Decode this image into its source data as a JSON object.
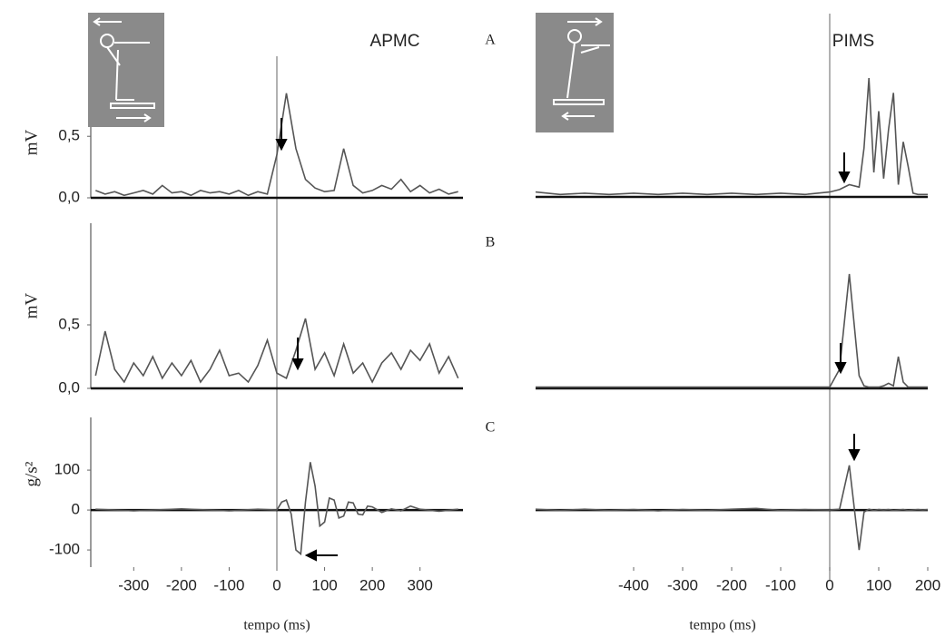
{
  "chart_data": [
    {
      "type": "line",
      "title": "APMC",
      "panel_label": "A",
      "ylabel": "mV",
      "color": "#555555",
      "reference_x": 0,
      "xlim": [
        -390,
        390
      ],
      "ylim": [
        0,
        0.9
      ],
      "yticks": [
        {
          "value": 0,
          "label": "0,0"
        },
        {
          "value": 0.5,
          "label": "0,5"
        }
      ],
      "x": [
        -380,
        -360,
        -340,
        -320,
        -300,
        -280,
        -260,
        -240,
        -220,
        -200,
        -180,
        -160,
        -140,
        -120,
        -100,
        -80,
        -60,
        -40,
        -20,
        0,
        20,
        40,
        60,
        80,
        100,
        120,
        140,
        160,
        180,
        200,
        220,
        240,
        260,
        280,
        300,
        320,
        340,
        360,
        380
      ],
      "values": [
        0.06,
        0.03,
        0.05,
        0.02,
        0.04,
        0.06,
        0.03,
        0.1,
        0.04,
        0.05,
        0.02,
        0.06,
        0.04,
        0.05,
        0.03,
        0.06,
        0.02,
        0.05,
        0.03,
        0.35,
        0.85,
        0.4,
        0.15,
        0.08,
        0.05,
        0.06,
        0.4,
        0.1,
        0.04,
        0.06,
        0.1,
        0.07,
        0.15,
        0.05,
        0.1,
        0.04,
        0.07,
        0.03,
        0.05
      ]
    },
    {
      "type": "line",
      "panel_label": "B",
      "ylabel": "mV",
      "color": "#555555",
      "xlim": [
        -390,
        390
      ],
      "ylim": [
        0,
        1.3
      ],
      "yticks": [
        {
          "value": 0,
          "label": "0,0"
        },
        {
          "value": 0.5,
          "label": "0,5"
        }
      ],
      "x": [
        -380,
        -360,
        -340,
        -320,
        -300,
        -280,
        -260,
        -240,
        -220,
        -200,
        -180,
        -160,
        -140,
        -120,
        -100,
        -80,
        -60,
        -40,
        -20,
        0,
        20,
        40,
        60,
        80,
        100,
        120,
        140,
        160,
        180,
        200,
        220,
        240,
        260,
        280,
        300,
        320,
        340,
        360,
        380
      ],
      "values": [
        0.1,
        0.45,
        0.15,
        0.05,
        0.2,
        0.1,
        0.25,
        0.08,
        0.2,
        0.1,
        0.22,
        0.05,
        0.15,
        0.3,
        0.1,
        0.12,
        0.05,
        0.18,
        0.38,
        0.12,
        0.08,
        0.3,
        0.55,
        0.15,
        0.28,
        0.1,
        0.35,
        0.12,
        0.2,
        0.05,
        0.2,
        0.28,
        0.15,
        0.3,
        0.22,
        0.35,
        0.12,
        0.25,
        0.08
      ]
    },
    {
      "type": "line",
      "panel_label": "C",
      "ylabel": "g/s²",
      "xlabel": "tempo (ms)",
      "color": "#555555",
      "xlim": [
        -390,
        390
      ],
      "ylim": [
        -143,
        232
      ],
      "yticks": [
        -100,
        0,
        100
      ],
      "xticks": [
        -300,
        -200,
        -100,
        0,
        100,
        200,
        300
      ],
      "x": [
        -380,
        -300,
        -200,
        -100,
        -40,
        0,
        10,
        20,
        30,
        40,
        50,
        60,
        70,
        80,
        90,
        100,
        110,
        120,
        130,
        140,
        150,
        160,
        170,
        180,
        190,
        200,
        220,
        240,
        260,
        280,
        300,
        340,
        380
      ],
      "values": [
        2,
        -2,
        3,
        -2,
        2,
        0,
        20,
        25,
        -10,
        -100,
        -110,
        20,
        120,
        60,
        -40,
        -30,
        30,
        25,
        -20,
        -15,
        20,
        18,
        -10,
        -12,
        10,
        8,
        -6,
        3,
        -2,
        10,
        2,
        -3,
        2
      ]
    },
    {
      "type": "line",
      "title": "PIMS",
      "color": "#555555",
      "reference_x": 0,
      "xlim": [
        -600,
        200
      ],
      "ylim": [
        0,
        1
      ],
      "x": [
        -600,
        -550,
        -500,
        -450,
        -400,
        -350,
        -300,
        -250,
        -200,
        -150,
        -100,
        -50,
        0,
        20,
        40,
        60,
        70,
        80,
        90,
        100,
        110,
        120,
        130,
        140,
        150,
        160,
        170,
        180,
        190,
        200
      ],
      "values": [
        0.04,
        0.02,
        0.03,
        0.02,
        0.03,
        0.02,
        0.03,
        0.02,
        0.03,
        0.02,
        0.03,
        0.02,
        0.04,
        0.06,
        0.1,
        0.08,
        0.4,
        0.97,
        0.2,
        0.7,
        0.15,
        0.55,
        0.85,
        0.1,
        0.45,
        0.25,
        0.03,
        0.02,
        0.02,
        0.02
      ]
    },
    {
      "type": "line",
      "color": "#555555",
      "xlim": [
        -600,
        200
      ],
      "ylim": [
        0,
        1.3
      ],
      "x": [
        -600,
        -550,
        -500,
        -450,
        -400,
        -350,
        -300,
        -250,
        -200,
        -150,
        -100,
        -50,
        0,
        20,
        40,
        60,
        70,
        80,
        90,
        100,
        110,
        120,
        130,
        140,
        150,
        160,
        170,
        180,
        190,
        200
      ],
      "values": [
        0.01,
        0.01,
        0.01,
        0.01,
        0.01,
        0.01,
        0.01,
        0.01,
        0.01,
        0.01,
        0.01,
        0.01,
        0.01,
        0.15,
        0.9,
        0.1,
        0.02,
        0.01,
        0.01,
        0.01,
        0.02,
        0.04,
        0.02,
        0.25,
        0.05,
        0.01,
        0.01,
        0.01,
        0.01,
        0.01
      ]
    },
    {
      "type": "line",
      "xlabel": "tempo (ms)",
      "color": "#555555",
      "xlim": [
        -600,
        200
      ],
      "ylim": [
        -143,
        232
      ],
      "xticks": [
        -400,
        -300,
        -200,
        -100,
        0,
        100,
        200
      ],
      "x": [
        -600,
        -550,
        -500,
        -450,
        -400,
        -350,
        -300,
        -250,
        -200,
        -150,
        -100,
        -50,
        0,
        20,
        40,
        60,
        70,
        80,
        90,
        100,
        110,
        120,
        130,
        140,
        150,
        160,
        170,
        180,
        190,
        200
      ],
      "values": [
        2,
        -1,
        2,
        -1,
        1,
        -2,
        1,
        -1,
        2,
        4,
        -1,
        1,
        0,
        2,
        112,
        -100,
        -5,
        2,
        -1,
        1,
        0,
        1,
        -1,
        0,
        1,
        -1,
        0,
        1,
        0,
        1
      ]
    }
  ]
}
